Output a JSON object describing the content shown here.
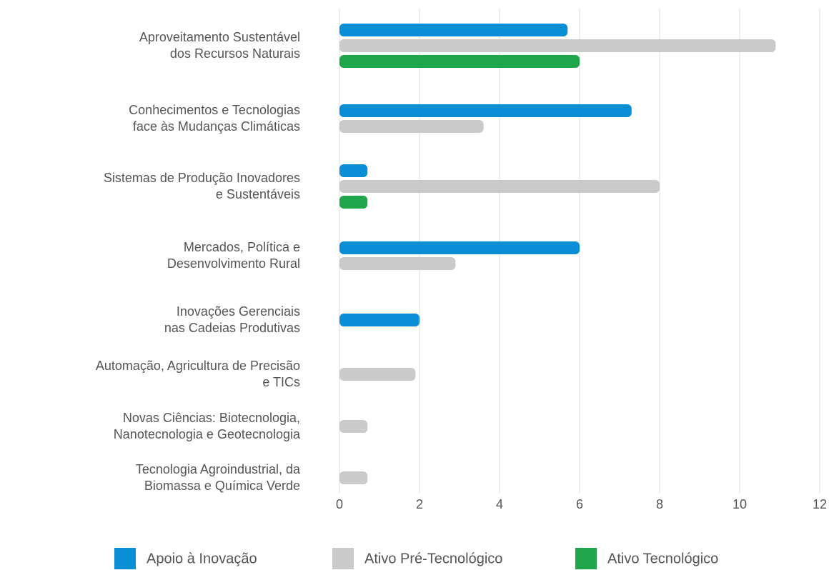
{
  "chart_data": {
    "type": "bar",
    "orientation": "horizontal",
    "categories": [
      [
        "Aproveitamento Sustentável",
        "dos Recursos Naturais"
      ],
      [
        "Conhecimentos e Tecnologias",
        "face às Mudanças Climáticas"
      ],
      [
        "Sistemas de Produção Inovadores",
        "e Sustentáveis"
      ],
      [
        "Mercados, Política e",
        "Desenvolvimento Rural"
      ],
      [
        "Inovações Gerenciais",
        "nas Cadeias Produtivas"
      ],
      [
        "Automação, Agricultura de Precisão",
        "e TICs"
      ],
      [
        "Novas Ciências: Biotecnologia,",
        "Nanotecnologia e Geotecnologia"
      ],
      [
        "Tecnologia Agroindustrial, da",
        "Biomassa e Química Verde"
      ]
    ],
    "series": [
      {
        "name": "Apoio à Inovação",
        "color": "#0a8fd6",
        "values": [
          5.7,
          7.3,
          0.7,
          6.0,
          2.0,
          null,
          null,
          null
        ]
      },
      {
        "name": "Ativo Pré-Tecnológico",
        "color": "#cacaca",
        "values": [
          10.9,
          3.6,
          8.0,
          2.9,
          null,
          1.9,
          0.7,
          0.7
        ]
      },
      {
        "name": "Ativo Tecnológico",
        "color": "#1fa64a",
        "values": [
          6.0,
          null,
          0.7,
          null,
          null,
          null,
          null,
          null
        ]
      }
    ],
    "xlim": [
      0,
      12
    ],
    "xticks": [
      0,
      2,
      4,
      6,
      8,
      10,
      12
    ],
    "grid": true,
    "legend": "bottom"
  }
}
